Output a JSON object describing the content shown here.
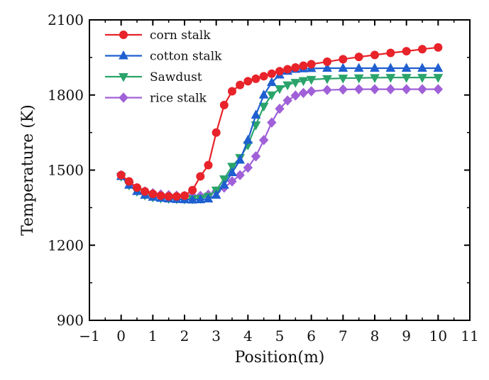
{
  "chart_data": {
    "type": "line",
    "title": "",
    "xlabel": "Position(m)",
    "ylabel": "Temperature (K)",
    "xlim": [
      -1,
      11
    ],
    "ylim": [
      900,
      2100
    ],
    "x_ticks": [
      -1,
      0,
      1,
      2,
      3,
      4,
      5,
      6,
      7,
      8,
      9,
      10,
      11
    ],
    "y_ticks": [
      900,
      1200,
      1500,
      1800,
      2100
    ],
    "grid": false,
    "legend_position": "top-left",
    "x": [
      0,
      0.25,
      0.5,
      0.75,
      1,
      1.25,
      1.5,
      1.75,
      2,
      2.25,
      2.5,
      2.75,
      3,
      3.25,
      3.5,
      3.75,
      4,
      4.25,
      4.5,
      4.75,
      5,
      5.25,
      5.5,
      5.75,
      6,
      6.5,
      7,
      7.5,
      8,
      8.5,
      9,
      9.5,
      10
    ],
    "series": [
      {
        "name": "corn stalk",
        "color": "#e8232a",
        "marker": "circle",
        "values": [
          1480,
          1455,
          1430,
          1415,
          1405,
          1398,
          1395,
          1395,
          1398,
          1420,
          1475,
          1520,
          1650,
          1760,
          1815,
          1840,
          1855,
          1865,
          1875,
          1885,
          1895,
          1903,
          1910,
          1917,
          1923,
          1933,
          1943,
          1952,
          1960,
          1968,
          1975,
          1983,
          1990
        ]
      },
      {
        "name": "cotton stalk",
        "color": "#1f5fd0",
        "marker": "triangle-up",
        "values": [
          1475,
          1440,
          1415,
          1400,
          1392,
          1388,
          1385,
          1383,
          1382,
          1381,
          1382,
          1385,
          1400,
          1440,
          1490,
          1540,
          1620,
          1720,
          1800,
          1850,
          1880,
          1895,
          1903,
          1905,
          1906,
          1907,
          1907,
          1907,
          1907,
          1907,
          1907,
          1907,
          1907
        ]
      },
      {
        "name": "Sawdust",
        "color": "#2aa46a",
        "marker": "triangle-down",
        "values": [
          1475,
          1440,
          1415,
          1400,
          1392,
          1388,
          1386,
          1385,
          1384,
          1385,
          1387,
          1395,
          1420,
          1465,
          1515,
          1550,
          1600,
          1680,
          1755,
          1800,
          1825,
          1840,
          1850,
          1857,
          1862,
          1865,
          1867,
          1868,
          1869,
          1870,
          1870,
          1870,
          1870
        ]
      },
      {
        "name": "rice stalk",
        "color": "#a060d8",
        "marker": "diamond",
        "values": [
          1480,
          1450,
          1428,
          1415,
          1408,
          1403,
          1400,
          1398,
          1397,
          1397,
          1397,
          1402,
          1415,
          1430,
          1455,
          1480,
          1510,
          1555,
          1620,
          1690,
          1745,
          1778,
          1798,
          1808,
          1815,
          1820,
          1822,
          1823,
          1823,
          1823,
          1823,
          1823,
          1823
        ]
      }
    ]
  }
}
